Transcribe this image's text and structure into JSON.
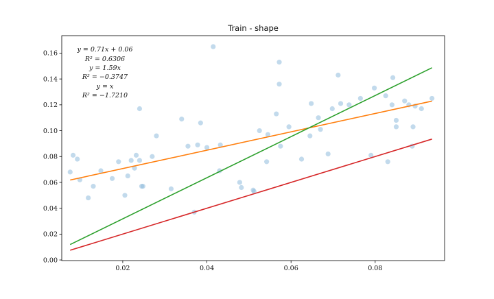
{
  "chart_data": {
    "type": "scatter",
    "title": "Train - shape",
    "xlabel": "",
    "ylabel": "",
    "xlim": [
      0.0055,
      0.0965
    ],
    "ylim": [
      -0.0005,
      0.1735
    ],
    "grid": false,
    "xticks": [
      "0.02",
      "0.04",
      "0.06",
      "0.08"
    ],
    "xtick_values": [
      0.02,
      0.04,
      0.06,
      0.08
    ],
    "yticks": [
      "0.00",
      "0.02",
      "0.04",
      "0.06",
      "0.08",
      "0.10",
      "0.12",
      "0.14",
      "0.16"
    ],
    "ytick_values": [
      0,
      0.02,
      0.04,
      0.06,
      0.08,
      0.1,
      0.12,
      0.14,
      0.16
    ],
    "annotations": [
      "y = 0.71x + 0.06",
      "R² = 0.6306",
      "y = 1.59x",
      "R² = −0.3747",
      "y = x",
      "R² = −1.7210"
    ],
    "colors": {
      "points": "#8fbcdc",
      "fit_linear": "#ff7f0e",
      "fit_proportional": "#2ca02c",
      "identity": "#d62728"
    },
    "scatter": [
      [
        0.0075,
        0.068
      ],
      [
        0.0082,
        0.081
      ],
      [
        0.0092,
        0.078
      ],
      [
        0.0098,
        0.062
      ],
      [
        0.0118,
        0.048
      ],
      [
        0.013,
        0.057
      ],
      [
        0.0148,
        0.069
      ],
      [
        0.0175,
        0.063
      ],
      [
        0.019,
        0.076
      ],
      [
        0.0205,
        0.05
      ],
      [
        0.0212,
        0.065
      ],
      [
        0.022,
        0.077
      ],
      [
        0.0228,
        0.071
      ],
      [
        0.0232,
        0.081
      ],
      [
        0.024,
        0.077
      ],
      [
        0.024,
        0.117
      ],
      [
        0.0245,
        0.057
      ],
      [
        0.0248,
        0.057
      ],
      [
        0.027,
        0.08
      ],
      [
        0.028,
        0.096
      ],
      [
        0.0315,
        0.055
      ],
      [
        0.034,
        0.109
      ],
      [
        0.0355,
        0.088
      ],
      [
        0.037,
        0.037
      ],
      [
        0.0378,
        0.089
      ],
      [
        0.0385,
        0.106
      ],
      [
        0.04,
        0.087
      ],
      [
        0.0415,
        0.165
      ],
      [
        0.043,
        0.069
      ],
      [
        0.0432,
        0.089
      ],
      [
        0.0478,
        0.06
      ],
      [
        0.0482,
        0.056
      ],
      [
        0.051,
        0.054
      ],
      [
        0.0512,
        0.053
      ],
      [
        0.0525,
        0.1
      ],
      [
        0.0542,
        0.076
      ],
      [
        0.0545,
        0.097
      ],
      [
        0.0565,
        0.113
      ],
      [
        0.0572,
        0.153
      ],
      [
        0.0572,
        0.136
      ],
      [
        0.0575,
        0.088
      ],
      [
        0.0595,
        0.103
      ],
      [
        0.0625,
        0.078
      ],
      [
        0.0645,
        0.096
      ],
      [
        0.0648,
        0.121
      ],
      [
        0.0665,
        0.11
      ],
      [
        0.067,
        0.101
      ],
      [
        0.0688,
        0.082
      ],
      [
        0.0698,
        0.117
      ],
      [
        0.0712,
        0.143
      ],
      [
        0.0718,
        0.121
      ],
      [
        0.0738,
        0.12
      ],
      [
        0.0765,
        0.125
      ],
      [
        0.079,
        0.081
      ],
      [
        0.0798,
        0.133
      ],
      [
        0.0825,
        0.127
      ],
      [
        0.083,
        0.076
      ],
      [
        0.084,
        0.12
      ],
      [
        0.0842,
        0.141
      ],
      [
        0.085,
        0.108
      ],
      [
        0.085,
        0.103
      ],
      [
        0.087,
        0.123
      ],
      [
        0.088,
        0.12
      ],
      [
        0.0888,
        0.088
      ],
      [
        0.089,
        0.103
      ],
      [
        0.0895,
        0.119
      ],
      [
        0.091,
        0.117
      ],
      [
        0.0935,
        0.125
      ]
    ],
    "lines": [
      {
        "label": "y = 0.71x + 0.06",
        "slope": 0.71,
        "intercept": 0.0565,
        "x_range": [
          0.0075,
          0.0935
        ],
        "color": "#ff7f0e"
      },
      {
        "label": "y = 1.59x",
        "slope": 1.59,
        "intercept": 0.0,
        "x_range": [
          0.0075,
          0.0935
        ],
        "color": "#2ca02c"
      },
      {
        "label": "y = x",
        "slope": 1.0,
        "intercept": 0.0,
        "x_range": [
          0.0075,
          0.0935
        ],
        "color": "#d62728"
      }
    ]
  }
}
